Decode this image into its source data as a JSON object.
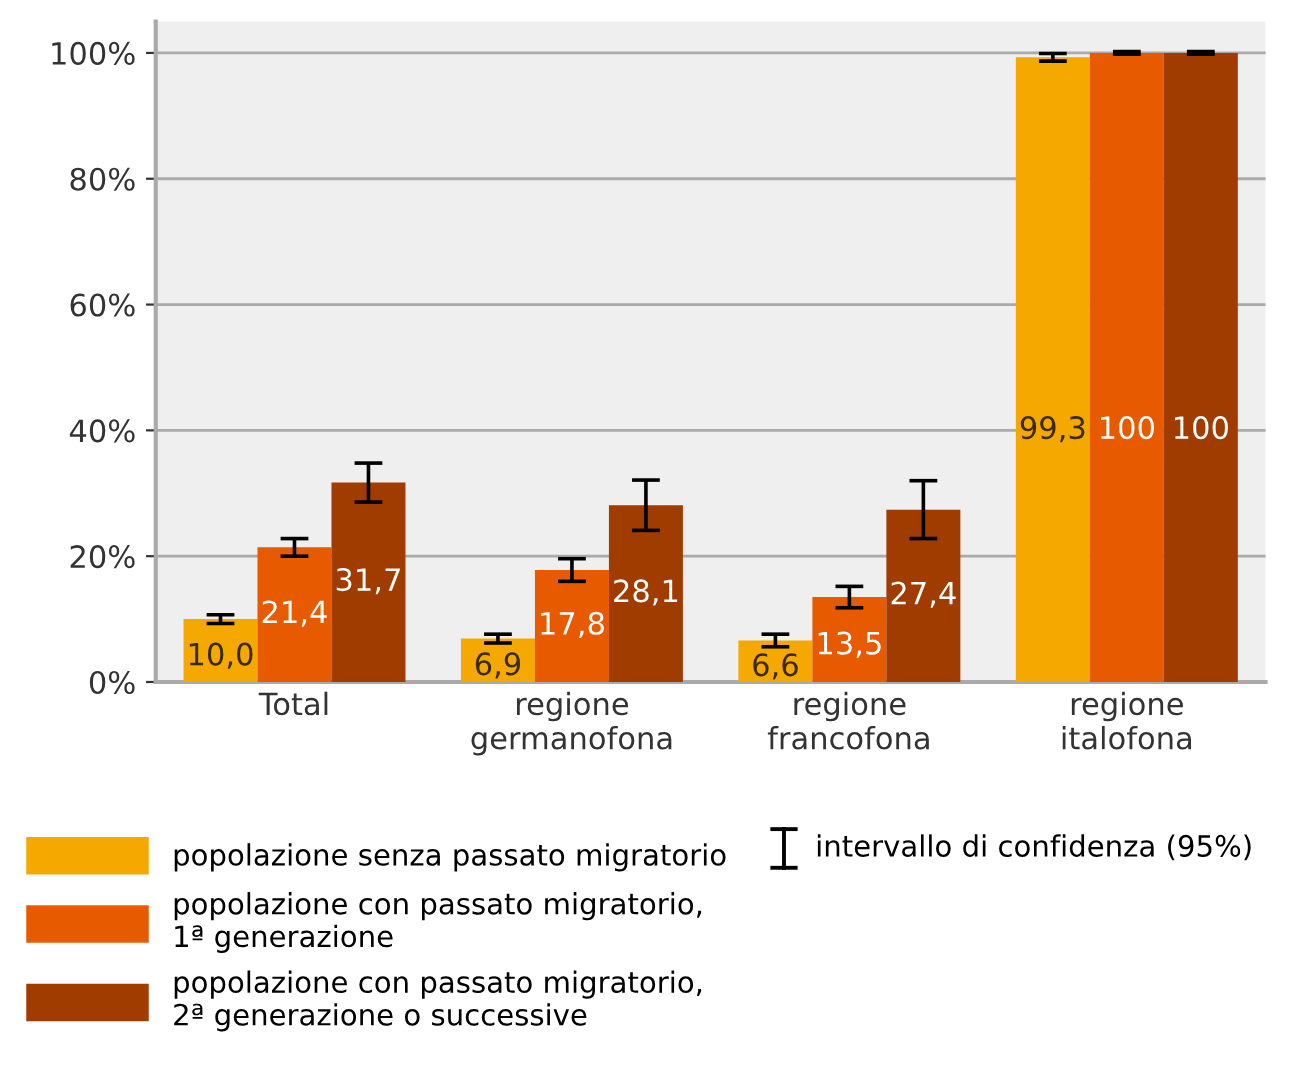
{
  "chart_data": {
    "type": "bar",
    "categories": [
      "Total",
      "regione\ngermanofona",
      "regione\nfrancofona",
      "regione\nitalofona"
    ],
    "series": [
      {
        "name": "popolazione senza passato migratorio",
        "color": "#f5a800",
        "values": [
          10.0,
          6.9,
          6.6,
          99.3
        ],
        "errors": [
          0.7,
          0.7,
          1.0,
          0.6
        ],
        "value_labels": [
          "10,0",
          "6,9",
          "6,6",
          "99,3"
        ]
      },
      {
        "name": "popolazione con passato migratorio,\n1ª generazione",
        "color": "#e85a00",
        "values": [
          21.4,
          17.8,
          13.5,
          100
        ],
        "errors": [
          1.4,
          1.8,
          1.7,
          0.2
        ],
        "value_labels": [
          "21,4",
          "17,8",
          "13,5",
          "100"
        ]
      },
      {
        "name": "popolazione con passato migratorio,\n2ª generazione o successive",
        "color": "#a03c00",
        "values": [
          31.7,
          28.1,
          27.4,
          100
        ],
        "errors": [
          3.1,
          4.0,
          4.6,
          0.2
        ],
        "value_labels": [
          "31,7",
          "28,1",
          "27,4",
          "100"
        ]
      }
    ],
    "ylim": [
      0,
      105
    ],
    "yticks": [
      {
        "value": 0,
        "label": "0%"
      },
      {
        "value": 20,
        "label": "20%"
      },
      {
        "value": 40,
        "label": "40%"
      },
      {
        "value": 60,
        "label": "60%"
      },
      {
        "value": 80,
        "label": "80%"
      },
      {
        "value": 100,
        "label": "100%"
      }
    ],
    "grid": "y",
    "legend": "bottom",
    "annotations": [
      "intervallo di confidenza (95%)"
    ]
  }
}
